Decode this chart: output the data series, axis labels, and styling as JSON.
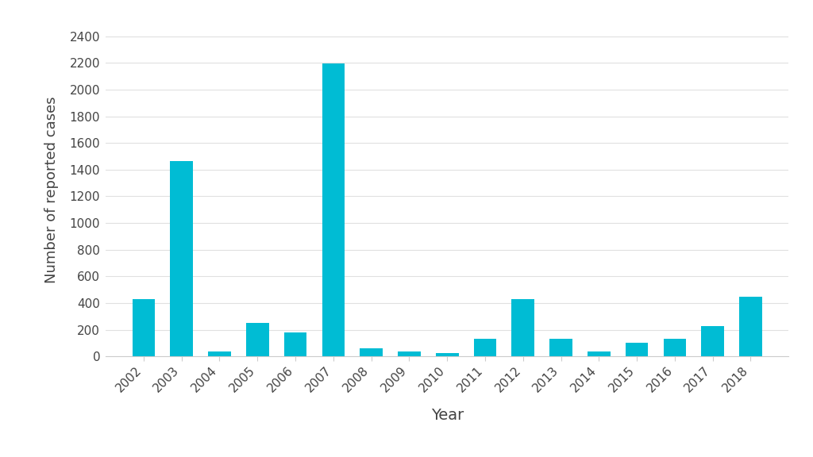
{
  "years": [
    2002,
    2003,
    2004,
    2005,
    2006,
    2007,
    2008,
    2009,
    2010,
    2011,
    2012,
    2013,
    2014,
    2015,
    2016,
    2017,
    2018
  ],
  "values": [
    430,
    1465,
    35,
    250,
    180,
    2195,
    60,
    40,
    25,
    130,
    430,
    130,
    40,
    105,
    135,
    230,
    445
  ],
  "bar_color": "#00BCD4",
  "xlabel": "Year",
  "ylabel": "Number of reported cases",
  "ylim": [
    0,
    2500
  ],
  "yticks": [
    0,
    200,
    400,
    600,
    800,
    1000,
    1200,
    1400,
    1600,
    1800,
    2000,
    2200,
    2400
  ],
  "background_color": "#ffffff",
  "xlabel_fontsize": 14,
  "ylabel_fontsize": 13,
  "tick_fontsize": 11,
  "grid_color": "#e0e0e0",
  "spine_color": "#cccccc",
  "text_color": "#444444"
}
